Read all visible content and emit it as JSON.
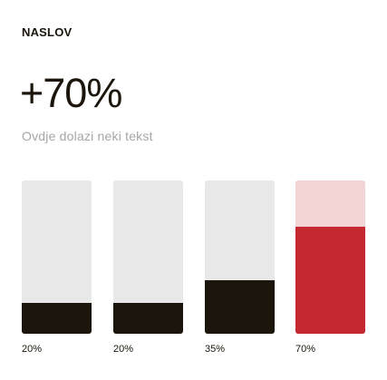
{
  "header": {
    "title": "NASLOV",
    "value": "+70%",
    "subtitle": "Ovdje dolazi neki tekst"
  },
  "chart_data": {
    "type": "bar",
    "categories": [
      "",
      "",
      "",
      ""
    ],
    "values": [
      20,
      20,
      35,
      70
    ],
    "data_labels": [
      "20%",
      "20%",
      "35%",
      "70%"
    ],
    "ylim": [
      0,
      100
    ],
    "grid": false,
    "colors": {
      "track": "#e8e8e8",
      "fill": "#1c150c",
      "highlight_track": "#f2d4d5",
      "highlight_fill": "#c62832"
    },
    "highlight_index": 3
  }
}
